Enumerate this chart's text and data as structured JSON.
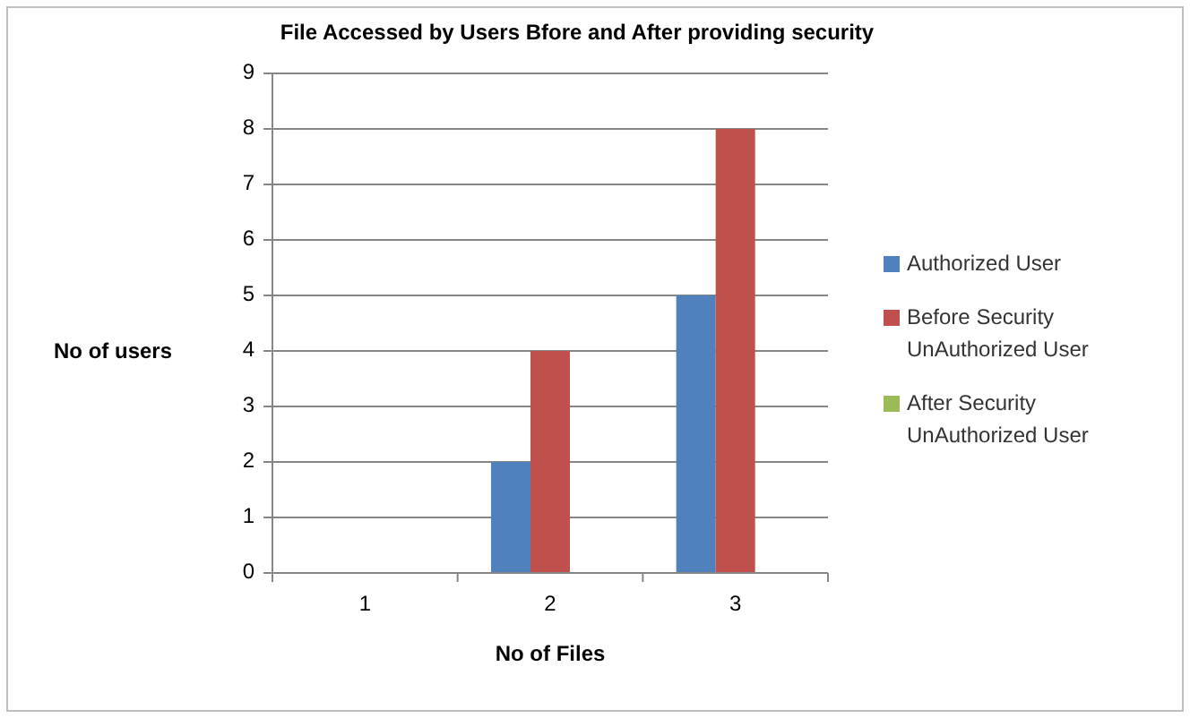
{
  "chart_data": {
    "type": "bar",
    "title": "File Accessed by Users Bfore and After providing security",
    "xlabel": "No of Files",
    "ylabel": "No of users",
    "categories": [
      "1",
      "2",
      "3"
    ],
    "series": [
      {
        "name": "Authorized User",
        "color": "#4f81bd",
        "values": [
          0,
          2,
          5
        ]
      },
      {
        "name": "Before Security UnAuthorized User",
        "color": "#c0504d",
        "values": [
          0,
          4,
          8
        ]
      },
      {
        "name": "After Security UnAuthorized User",
        "color": "#9bbb59",
        "values": [
          0,
          0,
          0
        ]
      }
    ],
    "ylim": [
      0,
      9
    ],
    "yticks": [
      0,
      1,
      2,
      3,
      4,
      5,
      6,
      7,
      8,
      9
    ],
    "grid": "y",
    "legend": "right"
  }
}
